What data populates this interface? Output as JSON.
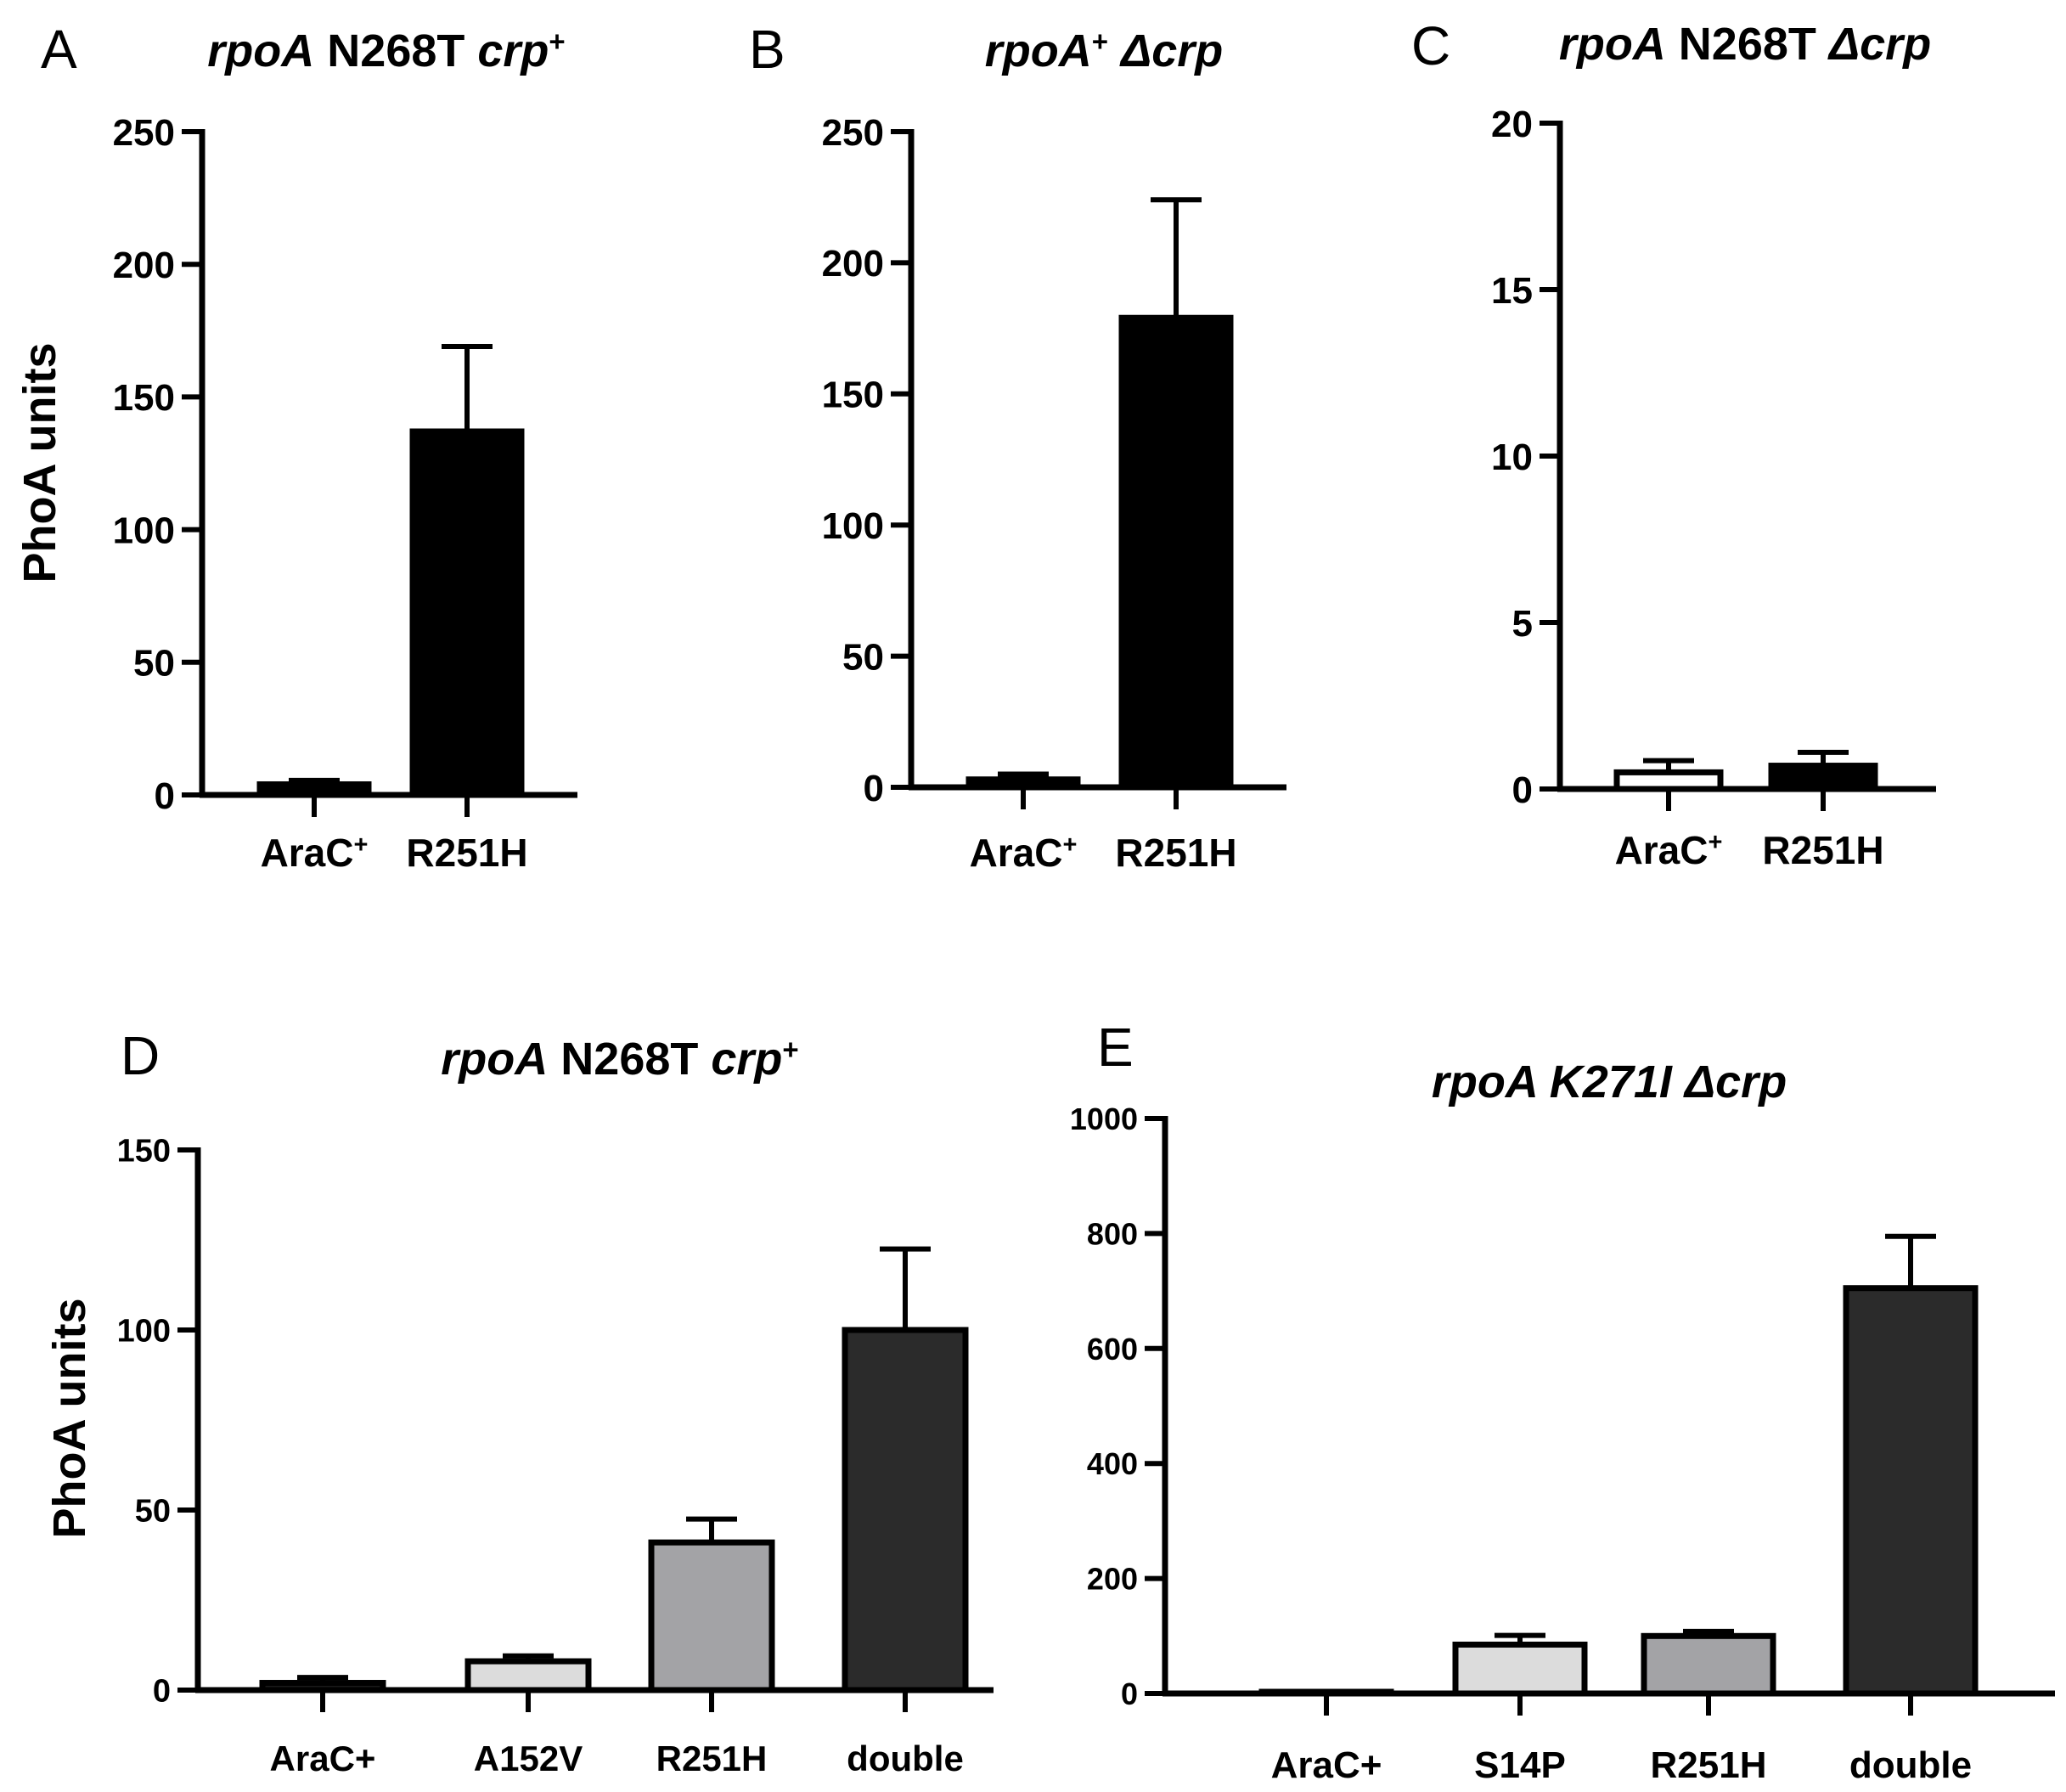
{
  "chart_data": [
    {
      "type": "bar",
      "panel": "A",
      "title_parts": [
        {
          "text": "rpoA",
          "italic": true
        },
        {
          "text": " N268T ",
          "italic": false
        },
        {
          "text": "crp",
          "italic": true
        },
        {
          "text": "+",
          "sup": true
        }
      ],
      "ylabel": "PhoA units",
      "ylim": [
        0,
        250
      ],
      "yticks": [
        "0",
        "50",
        "100",
        "150",
        "200",
        "250"
      ],
      "categories": [
        {
          "parts": [
            {
              "text": "AraC"
            },
            {
              "text": "+",
              "sup": true
            }
          ]
        },
        {
          "parts": [
            {
              "text": "R251H"
            }
          ]
        }
      ],
      "values": [
        4,
        137
      ],
      "errors": [
        1.5,
        32
      ],
      "colors": [
        "#000000",
        "#000000"
      ]
    },
    {
      "type": "bar",
      "panel": "B",
      "title_parts": [
        {
          "text": "rpoA",
          "italic": true
        },
        {
          "text": "+",
          "sup": true
        },
        {
          "text": "  Δcrp",
          "italic": true
        }
      ],
      "ylabel": "",
      "ylim": [
        0,
        250
      ],
      "yticks": [
        "0",
        "50",
        "100",
        "150",
        "200",
        "250"
      ],
      "categories": [
        {
          "parts": [
            {
              "text": "AraC"
            },
            {
              "text": "+",
              "sup": true
            }
          ]
        },
        {
          "parts": [
            {
              "text": "R251H"
            }
          ]
        }
      ],
      "values": [
        3,
        179
      ],
      "errors": [
        2,
        45
      ],
      "colors": [
        "#000000",
        "#000000"
      ]
    },
    {
      "type": "bar",
      "panel": "C",
      "title_parts": [
        {
          "text": "rpoA",
          "italic": true
        },
        {
          "text": " N268T ",
          "italic": false
        },
        {
          "text": "Δcrp",
          "italic": true
        }
      ],
      "ylabel": "",
      "ylim": [
        0,
        20
      ],
      "yticks": [
        "0",
        "5",
        "10",
        "15",
        "20"
      ],
      "categories": [
        {
          "parts": [
            {
              "text": "AraC"
            },
            {
              "text": "+",
              "sup": true
            }
          ]
        },
        {
          "parts": [
            {
              "text": "R251H"
            }
          ]
        }
      ],
      "values": [
        0.5,
        0.7
      ],
      "errors": [
        0.35,
        0.4
      ],
      "colors": [
        "#ffffff",
        "#000000"
      ]
    },
    {
      "type": "bar",
      "panel": "D",
      "title_parts": [
        {
          "text": "rpoA",
          "italic": true
        },
        {
          "text": " N268T ",
          "italic": false
        },
        {
          "text": "crp",
          "italic": true
        },
        {
          "text": "+",
          "sup": true
        }
      ],
      "ylabel": "PhoA units",
      "ylim": [
        0,
        150
      ],
      "yticks": [
        "0",
        "50",
        "100",
        "150"
      ],
      "categories": [
        {
          "parts": [
            {
              "text": "AraC+"
            }
          ]
        },
        {
          "parts": [
            {
              "text": "A152V"
            }
          ]
        },
        {
          "parts": [
            {
              "text": "R251H"
            }
          ]
        },
        {
          "parts": [
            {
              "text": "double"
            }
          ]
        }
      ],
      "values": [
        2,
        8,
        41,
        100
      ],
      "errors": [
        1.5,
        1.5,
        6.5,
        22.5
      ],
      "colors": [
        "#1a1a1a",
        "#dcdcdc",
        "#a3a3a6",
        "#2b2b2b"
      ]
    },
    {
      "type": "bar",
      "panel": "E",
      "title_parts": [
        {
          "text": "rpoA K271I Δcrp",
          "italic": true
        }
      ],
      "ylabel": "",
      "ylim": [
        0,
        1000
      ],
      "yticks": [
        "0",
        "200",
        "400",
        "600",
        "800",
        "1000"
      ],
      "categories": [
        {
          "parts": [
            {
              "text": "AraC+"
            }
          ]
        },
        {
          "parts": [
            {
              "text": "S14P"
            }
          ]
        },
        {
          "parts": [
            {
              "text": "R251H"
            }
          ]
        },
        {
          "parts": [
            {
              "text": "double"
            }
          ]
        }
      ],
      "values": [
        1,
        85,
        100,
        705
      ],
      "errors": [
        1,
        16,
        8,
        90
      ],
      "colors": [
        "#1a1a1a",
        "#dcdcdc",
        "#a3a3a6",
        "#2b2b2b"
      ]
    }
  ]
}
